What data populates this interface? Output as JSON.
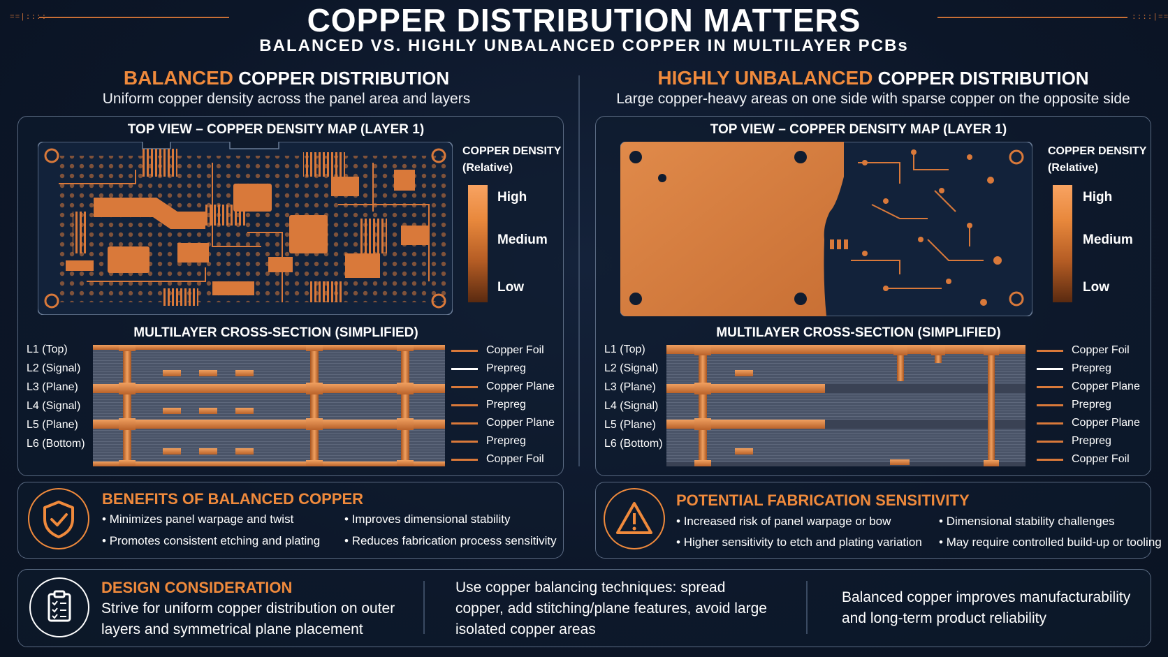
{
  "title": "COPPER DISTRIBUTION MATTERS",
  "subtitle": "BALANCED VS. HIGHLY UNBALANCED COPPER IN MULTILAYER PCBs",
  "left": {
    "heading_accent": "BALANCED",
    "heading_rest": " COPPER DISTRIBUTION",
    "description": "Uniform copper density across the panel area and layers",
    "map_title": "TOP VIEW – COPPER DENSITY MAP (LAYER 1)",
    "cross_title": "MULTILAYER CROSS-SECTION (SIMPLIFIED)",
    "benefits": {
      "title": "BENEFITS OF BALANCED COPPER",
      "items": [
        "Minimizes panel warpage and twist",
        "Improves dimensional stability",
        "Promotes consistent etching and plating",
        "Reduces fabrication process sensitivity"
      ]
    }
  },
  "right": {
    "heading_accent": "HIGHLY UNBALANCED",
    "heading_rest": " COPPER DISTRIBUTION",
    "description": "Large copper-heavy areas on one side with sparse copper on the opposite side",
    "map_title": "TOP VIEW – COPPER DENSITY MAP (LAYER 1)",
    "cross_title": "MULTILAYER CROSS-SECTION (SIMPLIFIED)",
    "sensitivity": {
      "title": "POTENTIAL FABRICATION SENSITIVITY",
      "items": [
        "Increased risk of panel warpage or bow",
        "Dimensional stability challenges",
        "Higher sensitivity to etch and plating variation",
        "May require controlled build-up or tooling"
      ]
    }
  },
  "legend": {
    "title_line1": "COPPER DENSITY",
    "title_line2": "(Relative)",
    "high": "High",
    "medium": "Medium",
    "low": "Low"
  },
  "layers": [
    "L1 (Top)",
    "L2 (Signal)",
    "L3 (Plane)",
    "L4 (Signal)",
    "L5 (Plane)",
    "L6 (Bottom)"
  ],
  "materials": [
    "Copper Foil",
    "Prepreg",
    "Copper Plane",
    "Prepreg",
    "Copper Plane",
    "Prepreg",
    "Copper Foil"
  ],
  "design": {
    "title": "DESIGN CONSIDERATION",
    "text": "Strive for uniform copper distribution on outer layers and symmetrical plane placement",
    "techniques": "Use copper balancing techniques: spread copper, add stitching/plane features, avoid large isolated copper areas",
    "reliability": "Balanced copper improves manufacturability and long-term product reliability"
  },
  "colors": {
    "accent": "#f08a3c",
    "copper": "#d9793a",
    "background": "#0d1829",
    "panel_border": "#5a6a82"
  },
  "icons": [
    "shield-check-icon",
    "warning-triangle-icon",
    "clipboard-checklist-icon"
  ]
}
